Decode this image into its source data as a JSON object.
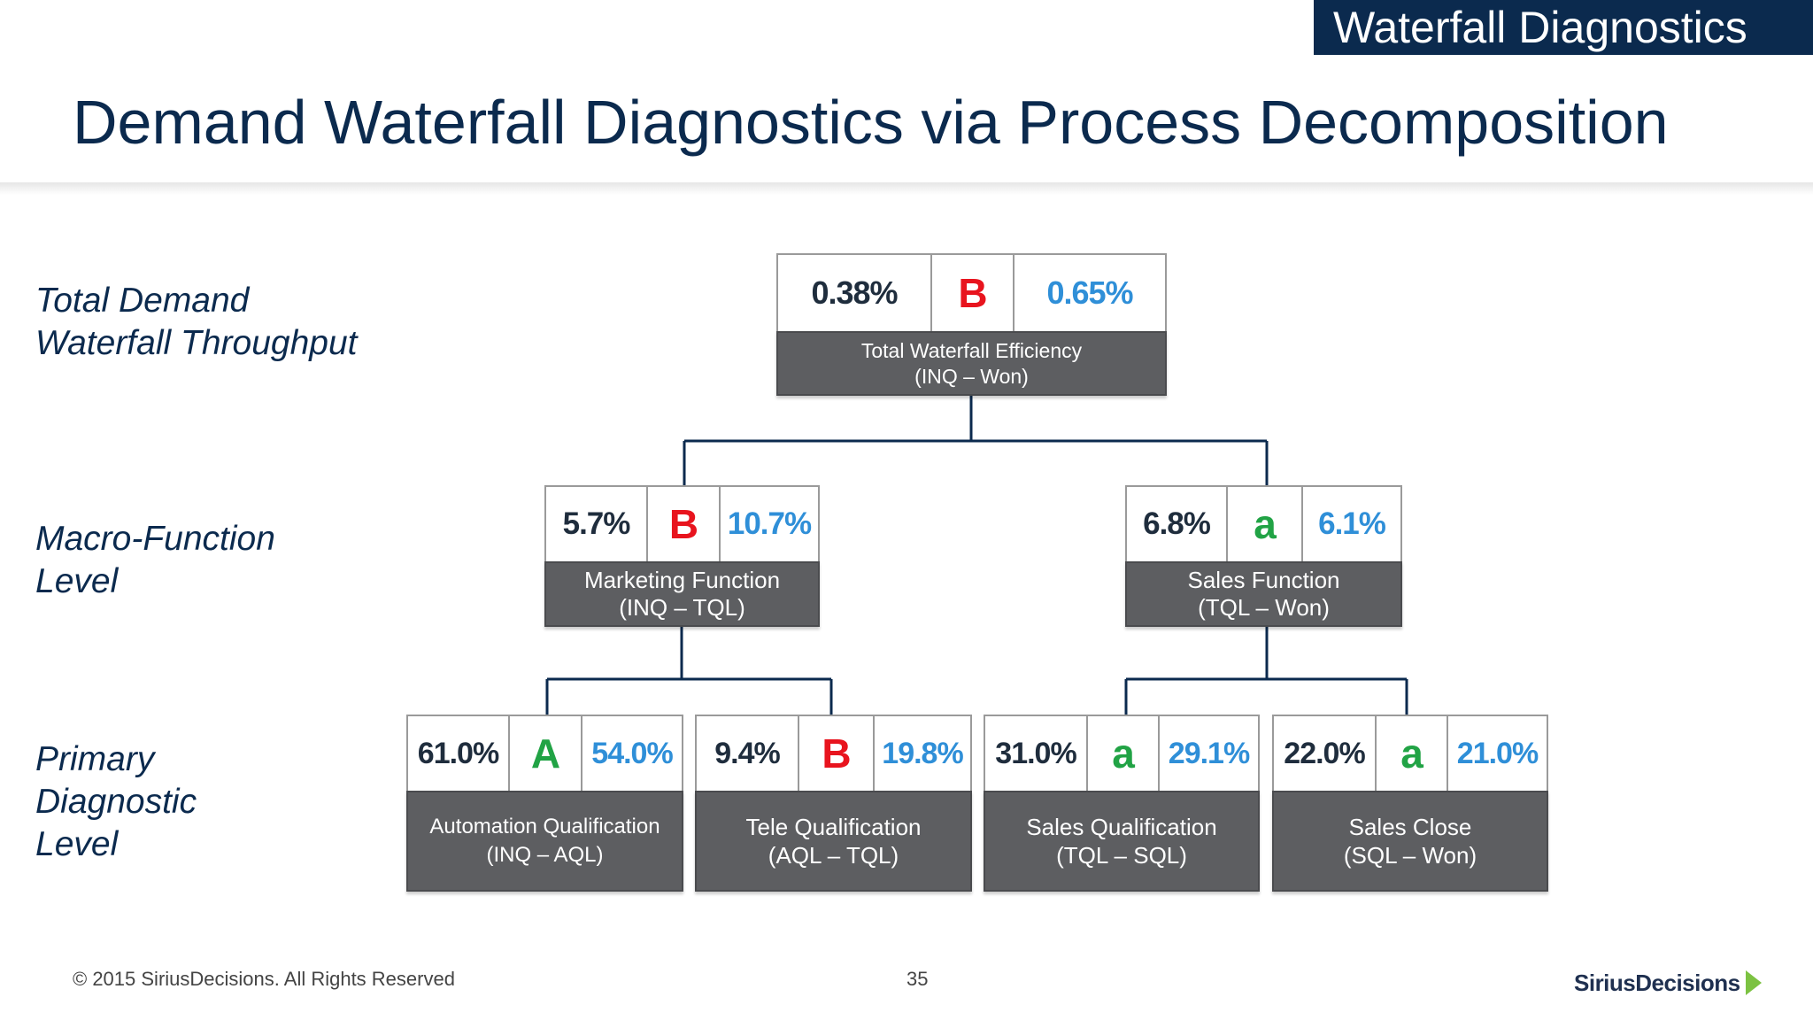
{
  "banner": {
    "text": "Waterfall Diagnostics"
  },
  "title": "Demand Waterfall Diagnostics via Process Decomposition",
  "levels": [
    {
      "lines": [
        "Total Demand",
        "Waterfall Throughput"
      ]
    },
    {
      "lines": [
        "Macro-Function",
        "Level"
      ]
    },
    {
      "lines": [
        "Primary",
        "Diagnostic",
        "Level"
      ]
    }
  ],
  "nodes": {
    "total": {
      "actual": "0.38%",
      "grade": "B",
      "target": "0.65%",
      "label": [
        "Total Waterfall Efficiency",
        "(INQ – Won)"
      ]
    },
    "marketing": {
      "actual": "5.7%",
      "grade": "B",
      "target": "10.7%",
      "label": [
        "Marketing Function",
        "(INQ – TQL)"
      ]
    },
    "sales": {
      "actual": "6.8%",
      "grade": "a",
      "target": "6.1%",
      "label": [
        "Sales Function",
        "(TQL – Won)"
      ]
    },
    "automation": {
      "actual": "61.0%",
      "grade": "A",
      "target": "54.0%",
      "label": [
        "Automation Qualification",
        "(INQ – AQL)"
      ]
    },
    "tele": {
      "actual": "9.4%",
      "grade": "B",
      "target": "19.8%",
      "label": [
        "Tele Qualification",
        "(AQL – TQL)"
      ]
    },
    "salesqual": {
      "actual": "31.0%",
      "grade": "a",
      "target": "29.1%",
      "label": [
        "Sales Qualification",
        "(TQL – SQL)"
      ]
    },
    "salesclose": {
      "actual": "22.0%",
      "grade": "a",
      "target": "21.0%",
      "label": [
        "Sales Close",
        "(SQL – Won)"
      ]
    }
  },
  "colors": {
    "navy": "#0b2a4e",
    "grade_red": "#e8141e",
    "grade_green": "#21a345",
    "target_blue": "#2f8fd8",
    "label_gray": "#5d5e61"
  },
  "footer": {
    "copyright": "© 2015 SiriusDecisions. All Rights Reserved",
    "page_number": "35",
    "logo_text": "SiriusDecisions"
  }
}
